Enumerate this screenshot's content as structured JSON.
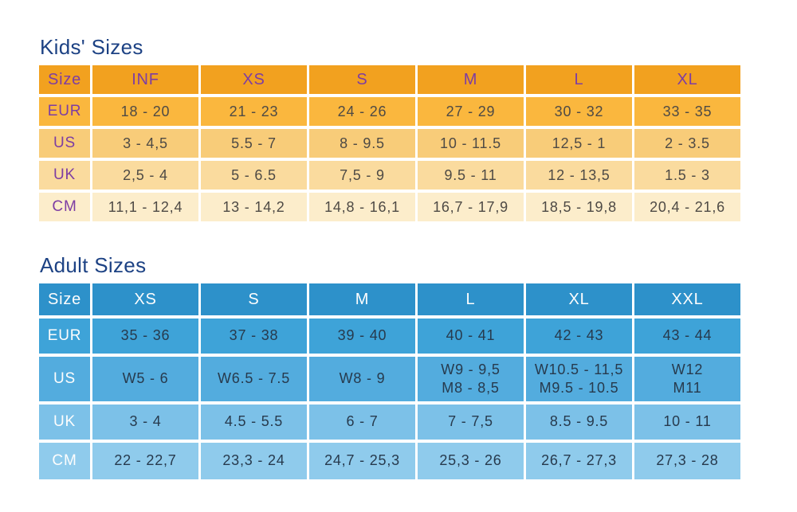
{
  "title_color": "#1d4284",
  "kids": {
    "title": "Kids' Sizes",
    "header": [
      "Size",
      "INF",
      "XS",
      "S",
      "M",
      "L",
      "XL"
    ],
    "rows": [
      {
        "label": "EUR",
        "values": [
          "18 - 20",
          "21 - 23",
          "24 - 26",
          "27 - 29",
          "30 - 32",
          "33 - 35"
        ]
      },
      {
        "label": "US",
        "values": [
          "3 - 4,5",
          "5.5 - 7",
          "8 - 9.5",
          "10 - 11.5",
          "12,5 - 1",
          "2 - 3.5"
        ]
      },
      {
        "label": "UK",
        "values": [
          "2,5 - 4",
          "5 - 6.5",
          "7,5 - 9",
          "9.5 - 11",
          "12 - 13,5",
          "1.5 - 3"
        ]
      },
      {
        "label": "CM",
        "values": [
          "11,1 - 12,4",
          "13 - 14,2",
          "14,8 - 16,1",
          "16,7 - 17,9",
          "18,5 - 19,8",
          "20,4 - 21,6"
        ]
      }
    ],
    "colors": {
      "header_bg": "#f2a11f",
      "row_bgs": [
        "#fab73e",
        "#f8cc79",
        "#fadb9e",
        "#fcedcb"
      ],
      "header_text": "#7d3da3",
      "label_text": "#7d3da3",
      "data_text": "#4e4a45"
    }
  },
  "adult": {
    "title": "Adult Sizes",
    "header": [
      "Size",
      "XS",
      "S",
      "M",
      "L",
      "XL",
      "XXL"
    ],
    "rows": [
      {
        "label": "EUR",
        "values": [
          "35 - 36",
          "37 - 38",
          "39 - 40",
          "40 - 41",
          "42 - 43",
          "43 - 44"
        ]
      },
      {
        "label": "US",
        "values": [
          "W5 - 6",
          "W6.5 - 7.5",
          "W8 - 9",
          "W9 - 9,5\nM8 - 8,5",
          "W10.5 - 11,5\nM9.5 - 10.5",
          "W12\nM11"
        ]
      },
      {
        "label": "UK",
        "values": [
          "3 - 4",
          "4.5 - 5.5",
          "6 - 7",
          "7 - 7,5",
          "8.5 - 9.5",
          "10 - 11"
        ]
      },
      {
        "label": "CM",
        "values": [
          "22 - 22,7",
          "23,3 - 24",
          "24,7 - 25,3",
          "25,3 - 26",
          "26,7 - 27,3",
          "27,3 - 28"
        ]
      }
    ],
    "colors": {
      "header_bg": "#2d91ca",
      "row_bgs": [
        "#3ea3d8",
        "#53acde",
        "#7cc1e8",
        "#8fcbec"
      ],
      "header_text": "#ffffff",
      "label_text": "#ffffff",
      "data_text": "#273a4d"
    }
  },
  "chart_data": [
    {
      "type": "table",
      "title": "Kids' Sizes",
      "columns": [
        "Size",
        "INF",
        "XS",
        "S",
        "M",
        "L",
        "XL"
      ],
      "rows": [
        [
          "EUR",
          "18 - 20",
          "21 - 23",
          "24 - 26",
          "27 - 29",
          "30 - 32",
          "33 - 35"
        ],
        [
          "US",
          "3 - 4,5",
          "5.5 - 7",
          "8 - 9.5",
          "10 - 11.5",
          "12,5 - 1",
          "2 - 3.5"
        ],
        [
          "UK",
          "2,5 - 4",
          "5 - 6.5",
          "7,5 - 9",
          "9.5 - 11",
          "12 - 13,5",
          "1.5 - 3"
        ],
        [
          "CM",
          "11,1 - 12,4",
          "13 - 14,2",
          "14,8 - 16,1",
          "16,7 - 17,9",
          "18,5 - 19,8",
          "20,4 - 21,6"
        ]
      ]
    },
    {
      "type": "table",
      "title": "Adult Sizes",
      "columns": [
        "Size",
        "XS",
        "S",
        "M",
        "L",
        "XL",
        "XXL"
      ],
      "rows": [
        [
          "EUR",
          "35 - 36",
          "37 - 38",
          "39 - 40",
          "40 - 41",
          "42 - 43",
          "43 - 44"
        ],
        [
          "US",
          "W5 - 6",
          "W6.5 - 7.5",
          "W8 - 9",
          "W9 - 9,5 / M8 - 8,5",
          "W10.5 - 11,5 / M9.5 - 10.5",
          "W12 / M11"
        ],
        [
          "UK",
          "3 - 4",
          "4.5 - 5.5",
          "6 - 7",
          "7 - 7,5",
          "8.5 - 9.5",
          "10 - 11"
        ],
        [
          "CM",
          "22 - 22,7",
          "23,3 - 24",
          "24,7 - 25,3",
          "25,3 - 26",
          "26,7 - 27,3",
          "27,3 - 28"
        ]
      ]
    }
  ]
}
